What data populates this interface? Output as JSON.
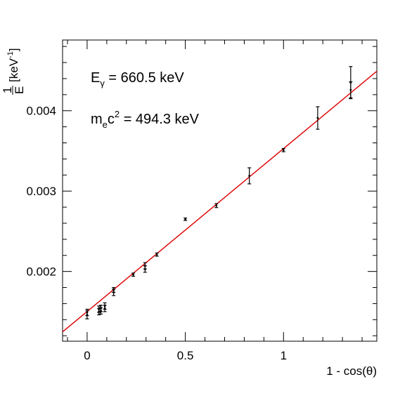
{
  "chart_data": {
    "type": "scatter",
    "title": "",
    "xlabel": "1 - cos(θ)",
    "ylabel": {
      "numerator": "1",
      "denominator": "E",
      "unit_prefix": "[keV",
      "unit_exp": "-1",
      "unit_suffix": "]"
    },
    "xlim": [
      -0.125,
      1.475
    ],
    "ylim": [
      0.001132,
      0.00488
    ],
    "x_ticks": [
      0,
      0.5,
      1
    ],
    "x_tick_labels": [
      "0",
      "0.5",
      "1"
    ],
    "y_ticks": [
      0.002,
      0.003,
      0.004
    ],
    "y_tick_labels": [
      "0.002",
      "0.003",
      "0.004"
    ],
    "grid": false,
    "series": [
      {
        "marker_color": "#000000",
        "points": [
          {
            "x": 0.0,
            "y": 0.00146,
            "err": 5e-05
          },
          {
            "x": 0.0,
            "y": 0.00149,
            "err": 4e-05
          },
          {
            "x": 0.06,
            "y": 0.0015,
            "err": 4e-05
          },
          {
            "x": 0.06,
            "y": 0.00153,
            "err": 4e-05
          },
          {
            "x": 0.07,
            "y": 0.00151,
            "err": 4e-05
          },
          {
            "x": 0.07,
            "y": 0.00154,
            "err": 4e-05
          },
          {
            "x": 0.09,
            "y": 0.00154,
            "err": 4e-05
          },
          {
            "x": 0.09,
            "y": 0.00157,
            "err": 4e-05
          },
          {
            "x": 0.135,
            "y": 0.00174,
            "err": 4e-05
          },
          {
            "x": 0.135,
            "y": 0.00177,
            "err": 3e-05
          },
          {
            "x": 0.235,
            "y": 0.00196,
            "err": 2e-05
          },
          {
            "x": 0.295,
            "y": 0.00203,
            "err": 4e-05
          },
          {
            "x": 0.295,
            "y": 0.00207,
            "err": 4e-05
          },
          {
            "x": 0.355,
            "y": 0.00221,
            "err": 2e-05
          },
          {
            "x": 0.5,
            "y": 0.00265,
            "err": 1.5e-05
          },
          {
            "x": 0.658,
            "y": 0.00282,
            "err": 2.5e-05
          },
          {
            "x": 0.826,
            "y": 0.00319,
            "err": 0.0001
          },
          {
            "x": 1.0,
            "y": 0.00351,
            "err": 2e-05
          },
          {
            "x": 1.174,
            "y": 0.00391,
            "err": 0.00014
          },
          {
            "x": 1.342,
            "y": 0.00426,
            "err": 0.0001
          },
          {
            "x": 1.342,
            "y": 0.00435,
            "err": 0.0002
          }
        ]
      }
    ],
    "fit_line": {
      "color": "#dd0000",
      "x": [
        -0.125,
        1.475
      ],
      "y": [
        0.001248,
        0.004492
      ]
    },
    "annotations": [
      {
        "main": "E",
        "sub": "γ",
        "rest": " = 660.5 keV"
      },
      {
        "main": "m",
        "sub": "e",
        "mid": "c",
        "sup": "2",
        "rest": " = 494.3 keV"
      }
    ]
  }
}
